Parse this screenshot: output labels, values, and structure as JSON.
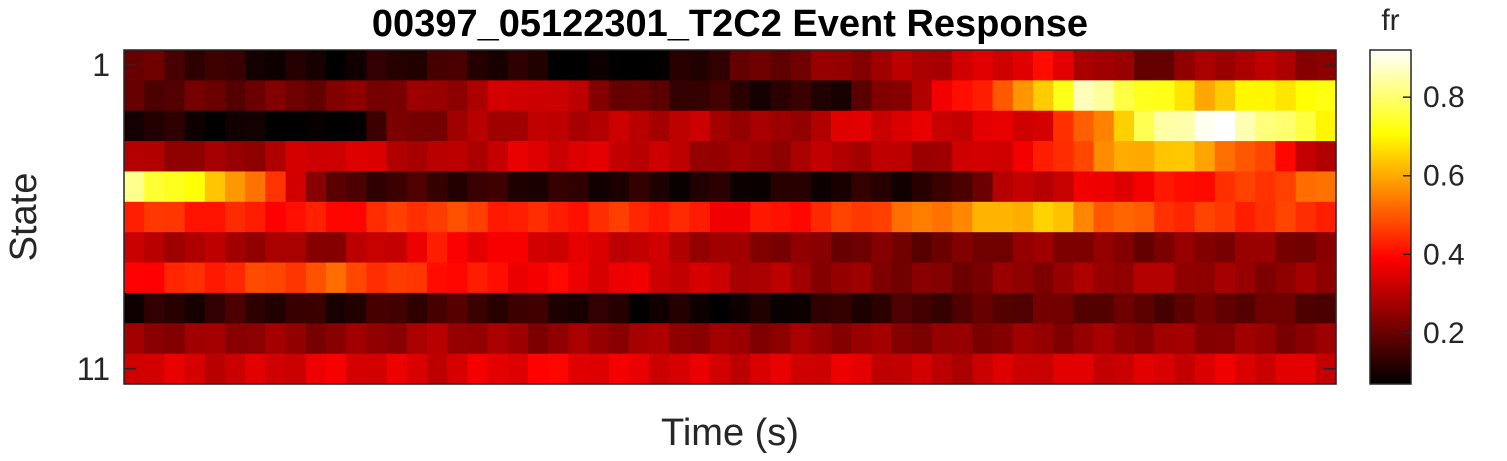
{
  "chart_data": {
    "type": "heatmap",
    "title": "00397_05122301_T2C2 Event Response",
    "xlabel": "Time (s)",
    "ylabel": "State",
    "colorbar_label": "fr",
    "colormap": "hot",
    "clim": [
      0.07,
      0.92
    ],
    "colorbar_ticks": [
      0.2,
      0.4,
      0.6,
      0.8
    ],
    "ytick_labels": [
      {
        "row": 1,
        "label": "1"
      },
      {
        "row": 11,
        "label": "11"
      }
    ],
    "n_rows": 11,
    "n_cols": 60,
    "rows": [
      {
        "state": 1,
        "keys": [
          [
            0,
            0.2
          ],
          [
            5,
            0.12
          ],
          [
            10,
            0.08
          ],
          [
            15,
            0.15
          ],
          [
            20,
            0.1
          ],
          [
            25,
            0.04
          ],
          [
            30,
            0.18
          ],
          [
            35,
            0.25
          ],
          [
            40,
            0.3
          ],
          [
            45,
            0.38
          ],
          [
            50,
            0.2
          ],
          [
            55,
            0.3
          ],
          [
            59,
            0.25
          ]
        ]
      },
      {
        "state": 2,
        "keys": [
          [
            0,
            0.18
          ],
          [
            5,
            0.2
          ],
          [
            10,
            0.22
          ],
          [
            15,
            0.25
          ],
          [
            20,
            0.35
          ],
          [
            25,
            0.18
          ],
          [
            30,
            0.12
          ],
          [
            35,
            0.12
          ],
          [
            40,
            0.35
          ],
          [
            44,
            0.55
          ],
          [
            47,
            0.85
          ],
          [
            50,
            0.75
          ],
          [
            53,
            0.62
          ],
          [
            56,
            0.7
          ],
          [
            59,
            0.7
          ]
        ]
      },
      {
        "state": 3,
        "keys": [
          [
            0,
            0.12
          ],
          [
            5,
            0.08
          ],
          [
            10,
            0.05
          ],
          [
            13,
            0.2
          ],
          [
            17,
            0.28
          ],
          [
            22,
            0.3
          ],
          [
            28,
            0.3
          ],
          [
            32,
            0.25
          ],
          [
            36,
            0.35
          ],
          [
            40,
            0.33
          ],
          [
            45,
            0.35
          ],
          [
            47,
            0.5
          ],
          [
            49,
            0.65
          ],
          [
            51,
            0.85
          ],
          [
            54,
            0.92
          ],
          [
            57,
            0.78
          ],
          [
            59,
            0.72
          ]
        ]
      },
      {
        "state": 4,
        "keys": [
          [
            0,
            0.28
          ],
          [
            5,
            0.25
          ],
          [
            10,
            0.35
          ],
          [
            15,
            0.28
          ],
          [
            20,
            0.35
          ],
          [
            25,
            0.32
          ],
          [
            30,
            0.25
          ],
          [
            35,
            0.3
          ],
          [
            40,
            0.28
          ],
          [
            45,
            0.4
          ],
          [
            48,
            0.55
          ],
          [
            51,
            0.65
          ],
          [
            54,
            0.55
          ],
          [
            57,
            0.4
          ],
          [
            59,
            0.28
          ]
        ]
      },
      {
        "state": 5,
        "keys": [
          [
            0,
            0.82
          ],
          [
            5,
            0.6
          ],
          [
            8,
            0.35
          ],
          [
            10,
            0.16
          ],
          [
            20,
            0.12
          ],
          [
            30,
            0.1
          ],
          [
            40,
            0.12
          ],
          [
            43,
            0.28
          ],
          [
            47,
            0.35
          ],
          [
            50,
            0.38
          ],
          [
            55,
            0.45
          ],
          [
            59,
            0.52
          ]
        ]
      },
      {
        "state": 6,
        "keys": [
          [
            0,
            0.45
          ],
          [
            5,
            0.42
          ],
          [
            10,
            0.4
          ],
          [
            15,
            0.48
          ],
          [
            20,
            0.42
          ],
          [
            25,
            0.45
          ],
          [
            30,
            0.38
          ],
          [
            35,
            0.45
          ],
          [
            40,
            0.55
          ],
          [
            45,
            0.65
          ],
          [
            48,
            0.52
          ],
          [
            52,
            0.45
          ],
          [
            59,
            0.45
          ]
        ]
      },
      {
        "state": 7,
        "keys": [
          [
            0,
            0.3
          ],
          [
            5,
            0.28
          ],
          [
            10,
            0.25
          ],
          [
            15,
            0.4
          ],
          [
            20,
            0.35
          ],
          [
            25,
            0.32
          ],
          [
            30,
            0.25
          ],
          [
            35,
            0.22
          ],
          [
            40,
            0.2
          ],
          [
            45,
            0.25
          ],
          [
            50,
            0.22
          ],
          [
            55,
            0.25
          ],
          [
            59,
            0.22
          ]
        ]
      },
      {
        "state": 8,
        "keys": [
          [
            0,
            0.4
          ],
          [
            5,
            0.45
          ],
          [
            10,
            0.5
          ],
          [
            15,
            0.42
          ],
          [
            20,
            0.38
          ],
          [
            25,
            0.35
          ],
          [
            30,
            0.3
          ],
          [
            35,
            0.25
          ],
          [
            40,
            0.22
          ],
          [
            45,
            0.25
          ],
          [
            50,
            0.28
          ],
          [
            55,
            0.25
          ],
          [
            59,
            0.25
          ]
        ]
      },
      {
        "state": 9,
        "keys": [
          [
            0,
            0.1
          ],
          [
            5,
            0.14
          ],
          [
            10,
            0.12
          ],
          [
            15,
            0.16
          ],
          [
            20,
            0.13
          ],
          [
            25,
            0.1
          ],
          [
            30,
            0.08
          ],
          [
            35,
            0.12
          ],
          [
            40,
            0.16
          ],
          [
            45,
            0.2
          ],
          [
            50,
            0.18
          ],
          [
            55,
            0.2
          ],
          [
            59,
            0.18
          ]
        ]
      },
      {
        "state": 10,
        "keys": [
          [
            0,
            0.25
          ],
          [
            5,
            0.26
          ],
          [
            10,
            0.24
          ],
          [
            15,
            0.28
          ],
          [
            20,
            0.25
          ],
          [
            25,
            0.27
          ],
          [
            30,
            0.25
          ],
          [
            35,
            0.26
          ],
          [
            40,
            0.24
          ],
          [
            45,
            0.25
          ],
          [
            50,
            0.26
          ],
          [
            55,
            0.25
          ],
          [
            59,
            0.24
          ]
        ]
      },
      {
        "state": 11,
        "keys": [
          [
            0,
            0.35
          ],
          [
            5,
            0.32
          ],
          [
            10,
            0.36
          ],
          [
            15,
            0.33
          ],
          [
            20,
            0.38
          ],
          [
            25,
            0.35
          ],
          [
            30,
            0.33
          ],
          [
            35,
            0.35
          ],
          [
            40,
            0.3
          ],
          [
            45,
            0.34
          ],
          [
            50,
            0.33
          ],
          [
            55,
            0.35
          ],
          [
            59,
            0.33
          ]
        ]
      }
    ]
  }
}
